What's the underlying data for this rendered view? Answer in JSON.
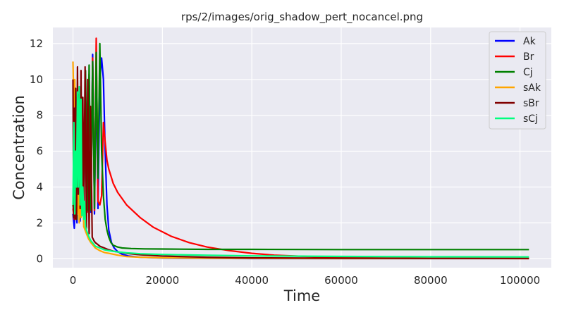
{
  "chart_data": {
    "type": "line",
    "title": "rps/2/images/orig_shadow_pert_nocancel.png",
    "xlabel": "Time",
    "ylabel": "Concentration",
    "xlim": [
      -4500,
      107000
    ],
    "ylim": [
      -0.5,
      12.9
    ],
    "xticks": [
      0,
      20000,
      40000,
      60000,
      80000,
      100000
    ],
    "yticks": [
      0,
      2,
      4,
      6,
      8,
      10,
      12
    ],
    "grid": true,
    "legend": "top-right",
    "background": "#eaeaf2",
    "series": [
      {
        "name": "Ak",
        "color": "#0000ff",
        "x": [
          0,
          300,
          600,
          900,
          1200,
          1600,
          2000,
          2400,
          2800,
          3200,
          3600,
          4000,
          4400,
          4800,
          5200,
          5600,
          6000,
          6400,
          6800,
          7200,
          7600,
          8000,
          8600,
          9200,
          10000,
          11000,
          12500,
          15000,
          20000,
          30000,
          40000,
          60000,
          80000,
          102000
        ],
        "y": [
          2.5,
          1.7,
          3.5,
          2.0,
          6.5,
          2.1,
          7.8,
          2.3,
          9.2,
          2.6,
          10.0,
          2.6,
          11.4,
          2.5,
          10.4,
          2.8,
          10.0,
          11.2,
          10.0,
          6.0,
          3.0,
          1.6,
          0.9,
          0.6,
          0.4,
          0.25,
          0.15,
          0.08,
          0.04,
          0.02,
          0.01,
          0.01,
          0.01,
          0.01
        ]
      },
      {
        "name": "Br",
        "color": "#ff0000",
        "x": [
          0,
          300,
          600,
          900,
          1200,
          1600,
          2000,
          2400,
          2800,
          3200,
          3600,
          4000,
          4400,
          4800,
          5200,
          5600,
          6000,
          6400,
          6800,
          7200,
          7600,
          8000,
          9000,
          10000,
          12000,
          15000,
          18000,
          22000,
          26000,
          30000,
          35000,
          40000,
          45000,
          50000,
          55000,
          60000,
          70000,
          80000,
          90000,
          102000
        ],
        "y": [
          2.8,
          2.2,
          5.5,
          2.4,
          7.0,
          2.5,
          8.0,
          2.6,
          9.0,
          2.6,
          10.3,
          2.8,
          11.2,
          2.7,
          12.3,
          3.2,
          3.0,
          3.5,
          7.6,
          6.5,
          5.5,
          5.0,
          4.2,
          3.7,
          3.0,
          2.3,
          1.75,
          1.25,
          0.9,
          0.65,
          0.45,
          0.3,
          0.2,
          0.15,
          0.1,
          0.07,
          0.04,
          0.02,
          0.02,
          0.01
        ]
      },
      {
        "name": "Cj",
        "color": "#008000",
        "x": [
          0,
          300,
          600,
          900,
          1200,
          1600,
          2000,
          2400,
          2800,
          3200,
          3600,
          4000,
          4400,
          4800,
          5200,
          5600,
          6000,
          6400,
          6800,
          7200,
          7600,
          8000,
          8500,
          9000,
          10000,
          11000,
          13000,
          16000,
          20000,
          30000,
          40000,
          60000,
          80000,
          102000
        ],
        "y": [
          3.0,
          2.3,
          4.5,
          2.2,
          7.5,
          2.3,
          9.0,
          2.5,
          10.5,
          2.7,
          10.8,
          2.7,
          11.0,
          2.8,
          11.5,
          4.5,
          12.0,
          6.0,
          3.5,
          2.2,
          1.6,
          1.2,
          0.9,
          0.75,
          0.65,
          0.6,
          0.57,
          0.55,
          0.54,
          0.52,
          0.52,
          0.51,
          0.51,
          0.51
        ]
      },
      {
        "name": "sAk",
        "color": "#ffa500",
        "x": [
          0,
          200,
          400,
          600,
          800,
          1000,
          1200,
          1400,
          1600,
          1800,
          2000,
          2200,
          2400,
          2700,
          3000,
          3500,
          4000,
          4500,
          5000,
          6000,
          7000,
          8000,
          10000,
          12000,
          15000,
          20000,
          30000,
          40000,
          60000,
          80000,
          102000
        ],
        "y": [
          11.0,
          8.5,
          10.0,
          4.0,
          6.5,
          2.5,
          5.5,
          2.0,
          4.0,
          2.3,
          2.5,
          3.5,
          1.8,
          1.6,
          1.4,
          1.1,
          0.9,
          0.75,
          0.6,
          0.45,
          0.35,
          0.3,
          0.2,
          0.12,
          0.08,
          0.05,
          0.03,
          0.02,
          0.01,
          0.01,
          0.01
        ]
      },
      {
        "name": "sBr",
        "color": "#800000",
        "x": [
          0,
          150,
          300,
          450,
          600,
          800,
          1000,
          1200,
          1400,
          1600,
          1800,
          2000,
          2200,
          2400,
          2700,
          3000,
          3300,
          3600,
          3900,
          4300,
          4700,
          5000,
          5500,
          6000,
          7000,
          8000,
          9000,
          10000,
          12000,
          15000,
          20000,
          30000,
          40000,
          60000,
          80000,
          102000
        ],
        "y": [
          10.0,
          2.3,
          8.4,
          2.2,
          9.5,
          2.2,
          10.7,
          3.6,
          9.2,
          2.8,
          10.5,
          2.6,
          9.0,
          2.5,
          10.7,
          1.7,
          10.0,
          1.4,
          8.5,
          1.2,
          1.0,
          0.9,
          0.8,
          0.7,
          0.6,
          0.5,
          0.42,
          0.38,
          0.3,
          0.22,
          0.15,
          0.08,
          0.05,
          0.03,
          0.02,
          0.02
        ]
      },
      {
        "name": "sCj",
        "color": "#00ff7f",
        "x": [
          0,
          200,
          400,
          600,
          800,
          1000,
          1200,
          1400,
          1600,
          1800,
          2000,
          2200,
          2400,
          2600,
          2800,
          3000,
          3300,
          3600,
          4000,
          4500,
          5000,
          6000,
          7000,
          8000,
          10000,
          12000,
          15000,
          20000,
          30000,
          40000,
          60000,
          80000,
          102000
        ],
        "y": [
          3.0,
          7.6,
          2.5,
          6.0,
          4.0,
          9.3,
          4.0,
          9.6,
          3.0,
          8.9,
          2.4,
          4.0,
          2.2,
          3.2,
          1.8,
          1.6,
          1.4,
          1.2,
          1.0,
          0.85,
          0.7,
          0.6,
          0.5,
          0.45,
          0.38,
          0.33,
          0.28,
          0.24,
          0.19,
          0.16,
          0.13,
          0.11,
          0.1
        ]
      }
    ]
  }
}
